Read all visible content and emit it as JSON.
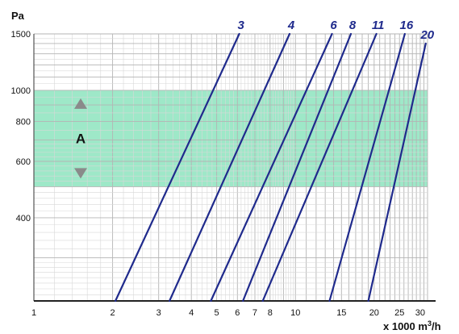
{
  "chart_data": {
    "type": "line",
    "y_unit": "Pa",
    "x_unit_prefix": "x 1000 m",
    "x_unit_sup": "3",
    "x_unit_suffix": "/h",
    "x_scale": "log",
    "y_scale": "log",
    "xlim": [
      1,
      32
    ],
    "ylim": [
      220,
      1500
    ],
    "x_ticks": [
      {
        "value": 1,
        "label": "1"
      },
      {
        "value": 2,
        "label": "2"
      },
      {
        "value": 3,
        "label": "3"
      },
      {
        "value": 4,
        "label": "4"
      },
      {
        "value": 5,
        "label": "5"
      },
      {
        "value": 6,
        "label": "6"
      },
      {
        "value": 7,
        "label": "7"
      },
      {
        "value": 8,
        "label": "8"
      },
      {
        "value": 10,
        "label": "10"
      },
      {
        "value": 15,
        "label": "15"
      },
      {
        "value": 20,
        "label": "20"
      },
      {
        "value": 25,
        "label": "25"
      },
      {
        "value": 30,
        "label": "30"
      }
    ],
    "y_ticks": [
      {
        "value": 1500,
        "label": "1500"
      },
      {
        "value": 1000,
        "label": "1000"
      },
      {
        "value": 800,
        "label": "800"
      },
      {
        "value": 600,
        "label": "600"
      },
      {
        "value": 400,
        "label": "400"
      }
    ],
    "grid": true,
    "band": {
      "label": "A",
      "from": 500,
      "to": 1000,
      "color": "#9ee8c8"
    },
    "band_marker_color": "#8a8a8a",
    "series_color": "#1f2a8c",
    "series": [
      {
        "name": "3",
        "points": [
          [
            2.05,
            220
          ],
          [
            6.1,
            1500
          ]
        ]
      },
      {
        "name": "4",
        "points": [
          [
            3.3,
            220
          ],
          [
            9.5,
            1500
          ]
        ]
      },
      {
        "name": "6",
        "points": [
          [
            4.75,
            220
          ],
          [
            13.8,
            1500
          ]
        ]
      },
      {
        "name": "8",
        "points": [
          [
            6.3,
            220
          ],
          [
            16.3,
            1500
          ]
        ]
      },
      {
        "name": "11",
        "points": [
          [
            7.5,
            220
          ],
          [
            20.4,
            1500
          ]
        ]
      },
      {
        "name": "16",
        "points": [
          [
            13.5,
            220
          ],
          [
            26.2,
            1500
          ]
        ]
      },
      {
        "name": "20",
        "points": [
          [
            19.0,
            220
          ],
          [
            31.5,
            1400
          ]
        ]
      }
    ]
  }
}
